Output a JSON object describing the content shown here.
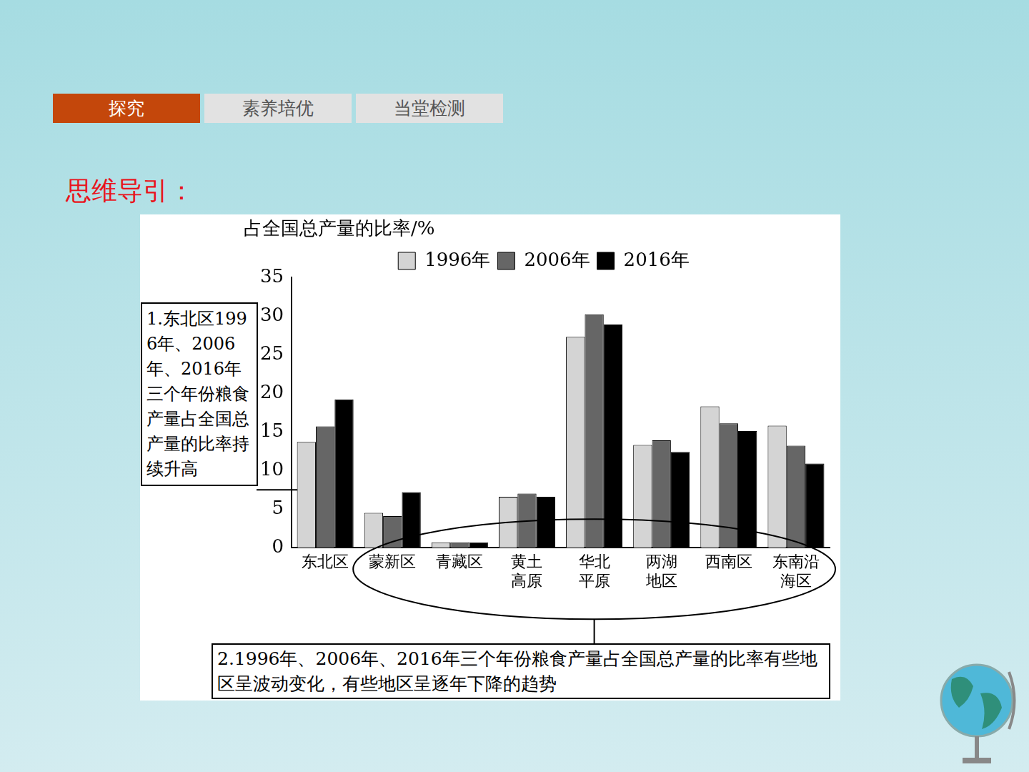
{
  "slide": {
    "tabs": [
      "探究",
      "素养培优",
      "当堂检测"
    ],
    "heading": "思维导引："
  },
  "chart_data": {
    "type": "bar",
    "y_label": "占全国总产量的比率/%",
    "categories": [
      "东北区",
      "蒙新区",
      "青藏区",
      "黄土高原",
      "华北平原",
      "两湖地区",
      "西南区",
      "东南沿海区"
    ],
    "series": [
      {
        "name": "1996年",
        "color": "#d4d4d4",
        "values": [
          13.7,
          4.5,
          0.7,
          6.6,
          27.3,
          13.3,
          18.3,
          15.8
        ]
      },
      {
        "name": "2006年",
        "color": "#666666",
        "values": [
          15.7,
          4.1,
          0.7,
          7.0,
          30.2,
          13.9,
          16.1,
          13.2
        ]
      },
      {
        "name": "2016年",
        "color": "#000000",
        "values": [
          19.2,
          7.2,
          0.7,
          6.6,
          28.9,
          12.4,
          15.1,
          10.9
        ]
      }
    ],
    "ylim": [
      0,
      35
    ],
    "yticks": [
      0,
      5,
      10,
      15,
      20,
      25,
      30,
      35
    ],
    "grid": false,
    "legend": "top",
    "annotations": [
      "1.东北区1996年、2006年、2016年三个年份粮食产量占全国总产量的比率持续升高",
      "2.1996年、2006年、2016年三个年份粮食产量占全国总产量的比率有些地区呈波动变化，有些地区呈逐年下降的趋势"
    ]
  }
}
